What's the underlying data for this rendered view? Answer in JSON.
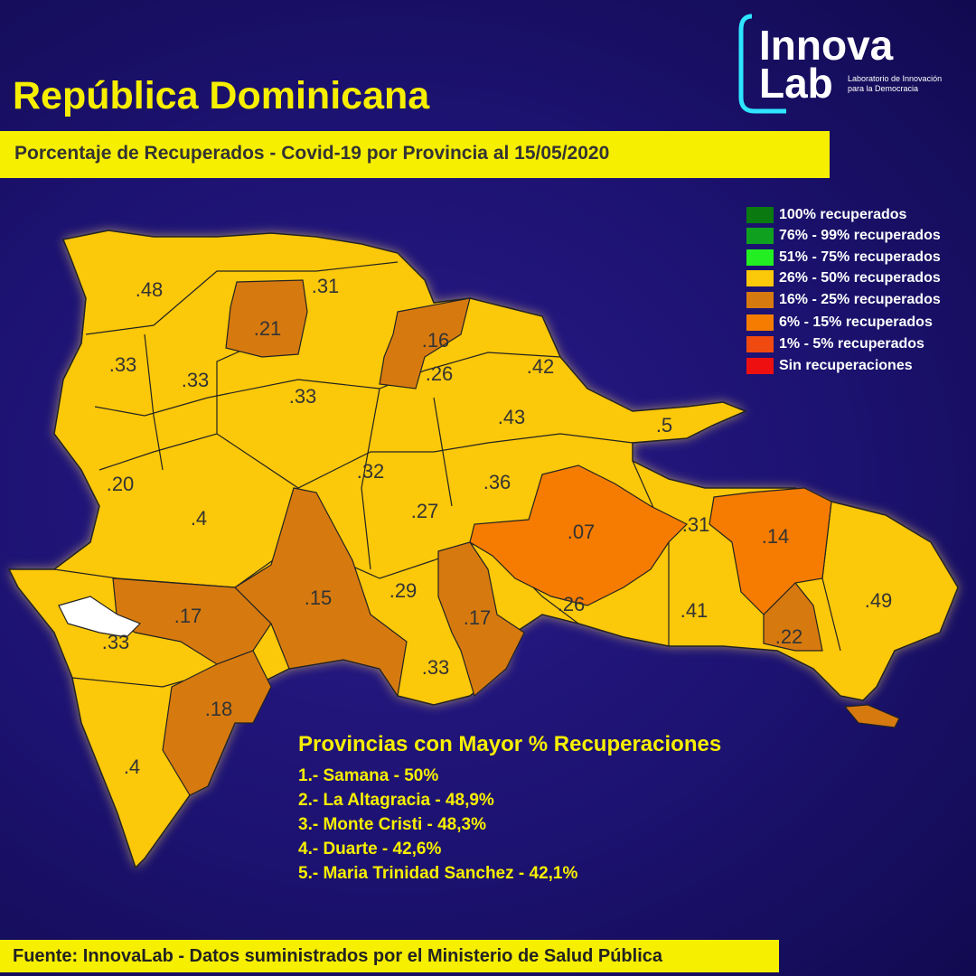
{
  "header": {
    "title": "República Dominicana",
    "subtitle": "Porcentaje de Recuperados - Covid-19 por Provincia al 15/05/2020"
  },
  "logo": {
    "line1": "Innova",
    "line2": "Lab",
    "tagline1": "Laboratorio de Innovación",
    "tagline2": "para la Democracia"
  },
  "legend": [
    "100% recuperados",
    "76% - 99% recuperados",
    "51% - 75% recuperados",
    "26% - 50% recuperados",
    "16% - 25% recuperados",
    "6% - 15% recuperados",
    "1% - 5% recuperados",
    "Sin recuperaciones"
  ],
  "map": {
    "labels": [
      ".48",
      ".31",
      ".21",
      ".16",
      ".33",
      ".33",
      ".26",
      ".42",
      ".33",
      ".43",
      ".5",
      ".20",
      ".32",
      ".36",
      ".4",
      ".27",
      ".07",
      ".31",
      ".14",
      ".29",
      ".15",
      ".17",
      ".17",
      ".26",
      ".41",
      ".49",
      ".33",
      ".22",
      ".33",
      ".18",
      ".4"
    ]
  },
  "ranking": {
    "title": "Provincias con Mayor % Recuperaciones",
    "items": [
      "1.- Samana - 50%",
      "2.- La Altagracia - 48,9%",
      "3.- Monte Cristi - 48,3%",
      "4.- Duarte - 42,6%",
      "5.- Maria Trinidad Sanchez - 42,1%"
    ]
  },
  "footer": "Fuente: InnovaLab - Datos suministrados por el Ministerio de Salud Pública"
}
